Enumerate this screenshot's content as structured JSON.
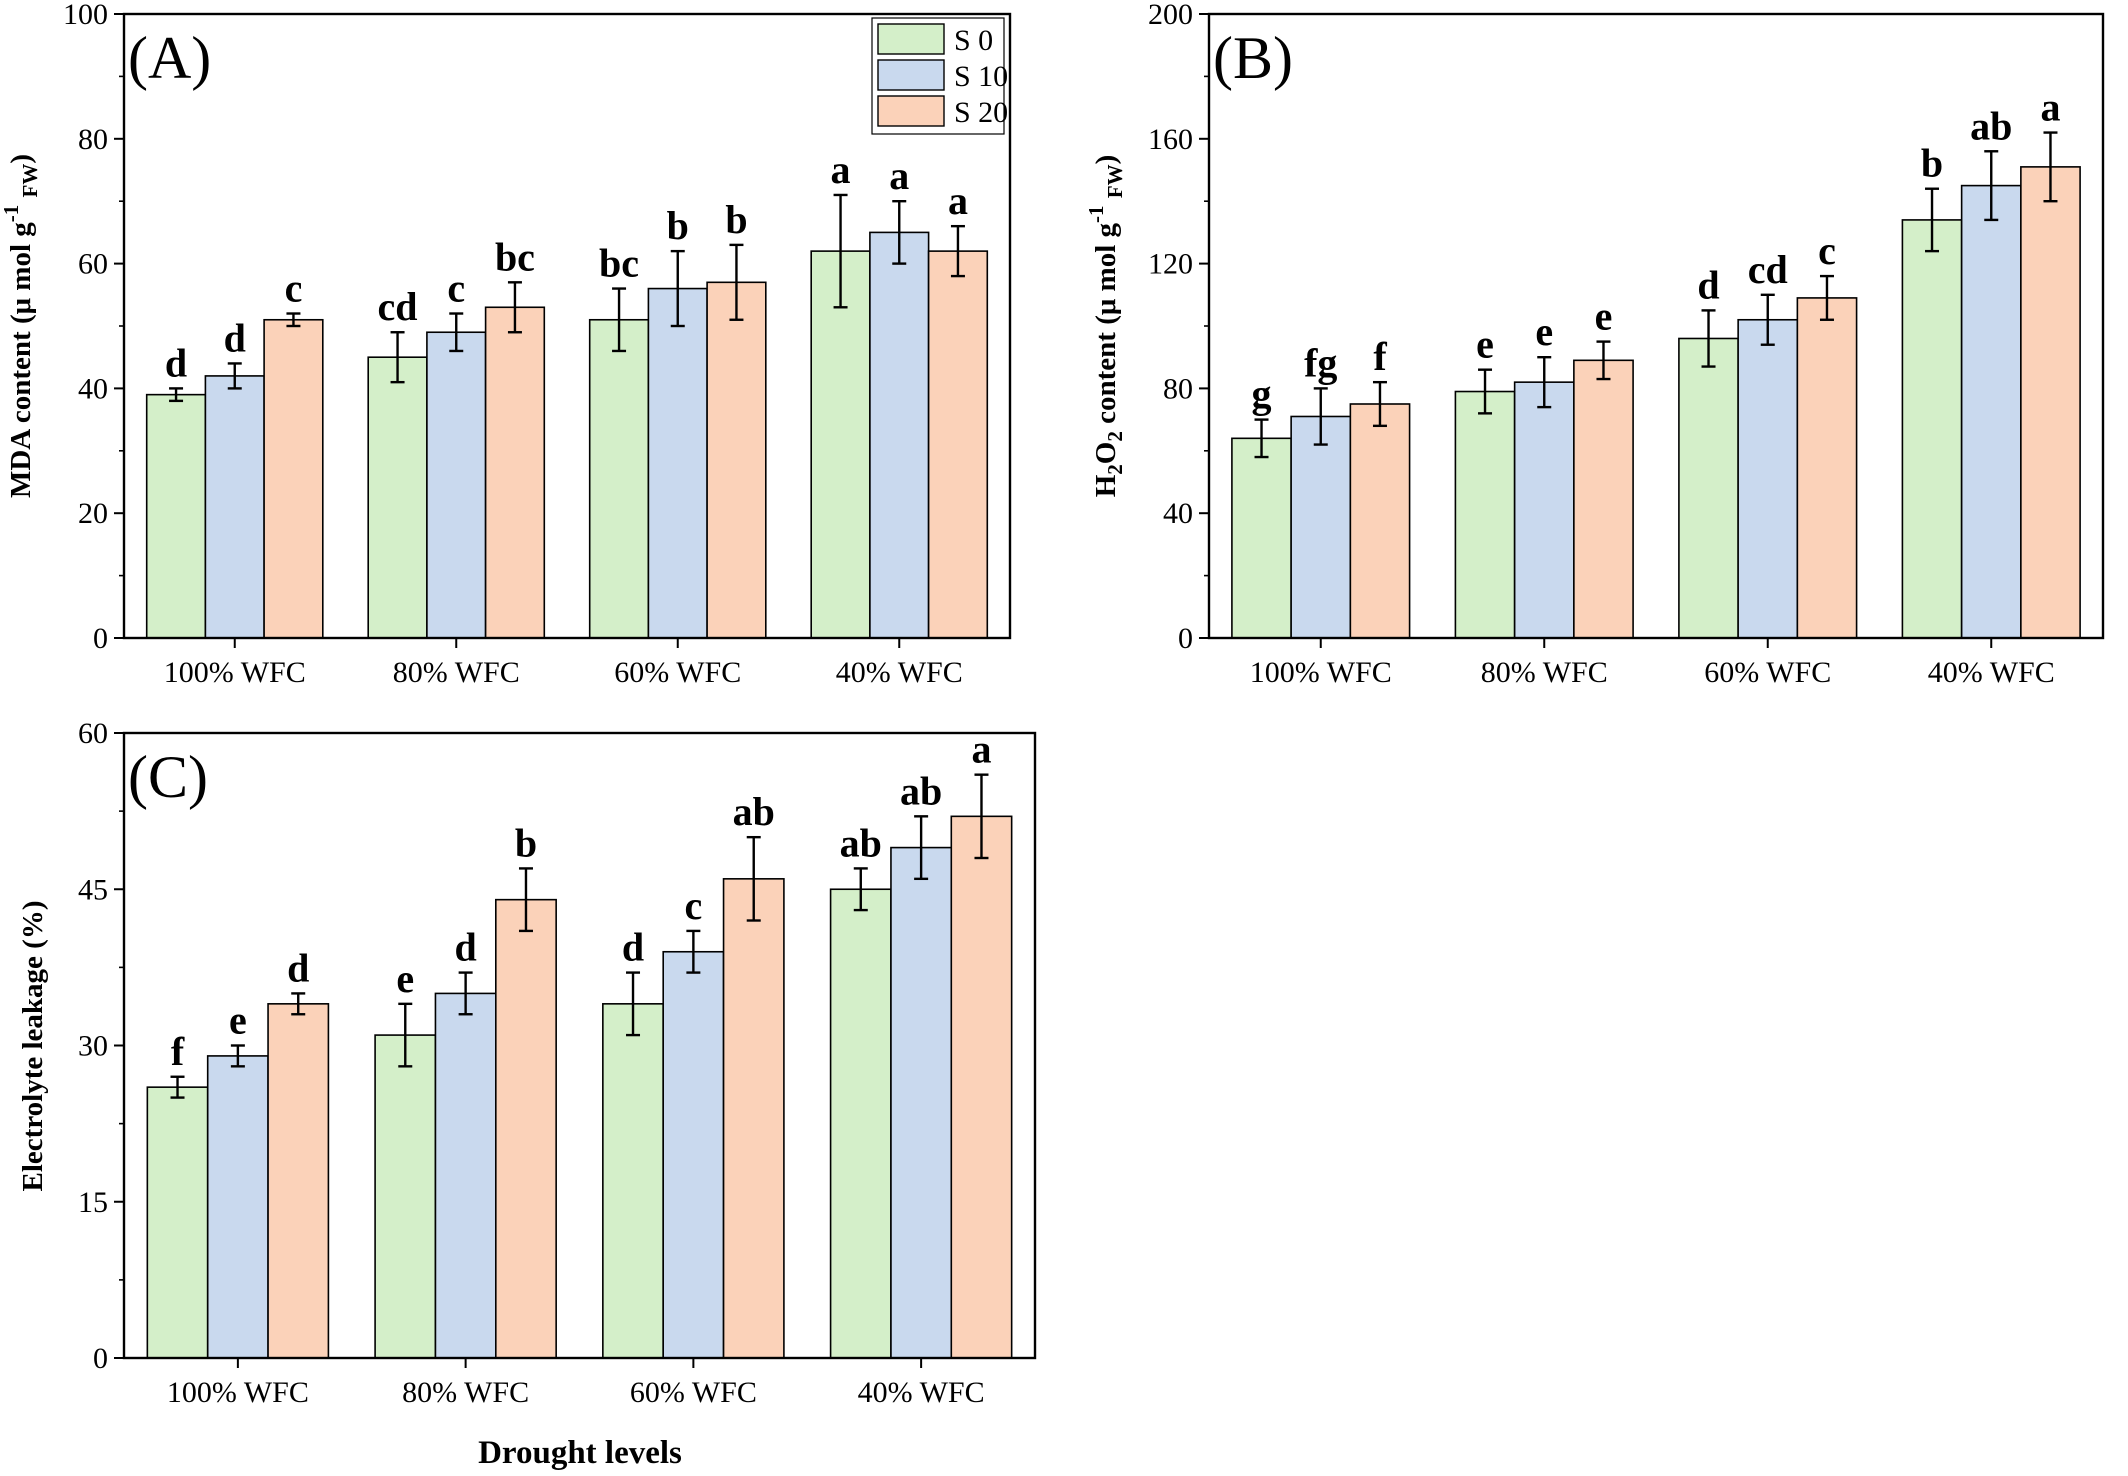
{
  "colors": {
    "S 0": "#d4efc9",
    "S 10": "#c9d9ee",
    "S 20": "#fbd2b9",
    "axis": "#000000"
  },
  "legend": {
    "entries": [
      "S 0",
      "S 10",
      "S 20"
    ],
    "placement": "top-right of panel A"
  },
  "x_axis_title": "Drought levels",
  "chart_data": [
    {
      "type": "bar",
      "panel": "(A)",
      "ylabel": "MDA content (μ mol g-1 FW)",
      "ylabel_parts": {
        "main": "MDA content (μ mol g",
        "sup": "-1",
        "sub": "FW",
        "close": ")"
      },
      "ylim": [
        0,
        100
      ],
      "yticks": [
        0,
        20,
        40,
        60,
        80,
        100
      ],
      "categories": [
        "100% WFC",
        "80% WFC",
        "60% WFC",
        "40% WFC"
      ],
      "series": [
        {
          "name": "S 0",
          "values": [
            39,
            45,
            51,
            62
          ],
          "errors": [
            1,
            4,
            5,
            9
          ],
          "letters": [
            "d",
            "cd",
            "bc",
            "a"
          ]
        },
        {
          "name": "S 10",
          "values": [
            42,
            49,
            56,
            65
          ],
          "errors": [
            2,
            3,
            6,
            5
          ],
          "letters": [
            "d",
            "c",
            "b",
            "a"
          ]
        },
        {
          "name": "S 20",
          "values": [
            51,
            53,
            57,
            62
          ],
          "errors": [
            1,
            4,
            6,
            4
          ],
          "letters": [
            "c",
            "bc",
            "b",
            "a"
          ]
        }
      ]
    },
    {
      "type": "bar",
      "panel": "(B)",
      "ylabel": "H2O2 content (μ mol g-1 FW)",
      "ylabel_parts": {
        "h": "H",
        "sub1": "2",
        "o": "O",
        "sub2": "2",
        "main": " content (μ mol g",
        "sup": "-1",
        "sub": "FW",
        "close": ")"
      },
      "ylim": [
        0,
        200
      ],
      "yticks": [
        0,
        40,
        80,
        120,
        160,
        200
      ],
      "categories": [
        "100% WFC",
        "80% WFC",
        "60% WFC",
        "40% WFC"
      ],
      "series": [
        {
          "name": "S 0",
          "values": [
            64,
            79,
            96,
            134
          ],
          "errors": [
            6,
            7,
            9,
            10
          ],
          "letters": [
            "g",
            "e",
            "d",
            "b"
          ]
        },
        {
          "name": "S 10",
          "values": [
            71,
            82,
            102,
            145
          ],
          "errors": [
            9,
            8,
            8,
            11
          ],
          "letters": [
            "fg",
            "e",
            "cd",
            "ab"
          ]
        },
        {
          "name": "S 20",
          "values": [
            75,
            89,
            109,
            151
          ],
          "errors": [
            7,
            6,
            7,
            11
          ],
          "letters": [
            "f",
            "e",
            "c",
            "a"
          ]
        }
      ]
    },
    {
      "type": "bar",
      "panel": "(C)",
      "ylabel": "Electrolyte leakage (%)",
      "ylim": [
        0,
        60
      ],
      "yticks": [
        0,
        15,
        30,
        45,
        60
      ],
      "categories": [
        "100% WFC",
        "80% WFC",
        "60% WFC",
        "40% WFC"
      ],
      "series": [
        {
          "name": "S 0",
          "values": [
            26,
            31,
            34,
            45
          ],
          "errors": [
            1,
            3,
            3,
            2
          ],
          "letters": [
            "f",
            "e",
            "d",
            "ab"
          ]
        },
        {
          "name": "S 10",
          "values": [
            29,
            35,
            39,
            49
          ],
          "errors": [
            1,
            2,
            2,
            3
          ],
          "letters": [
            "e",
            "d",
            "c",
            "ab"
          ]
        },
        {
          "name": "S 20",
          "values": [
            34,
            44,
            46,
            52
          ],
          "errors": [
            1,
            3,
            4,
            4
          ],
          "letters": [
            "d",
            "b",
            "ab",
            "a"
          ]
        }
      ]
    }
  ]
}
